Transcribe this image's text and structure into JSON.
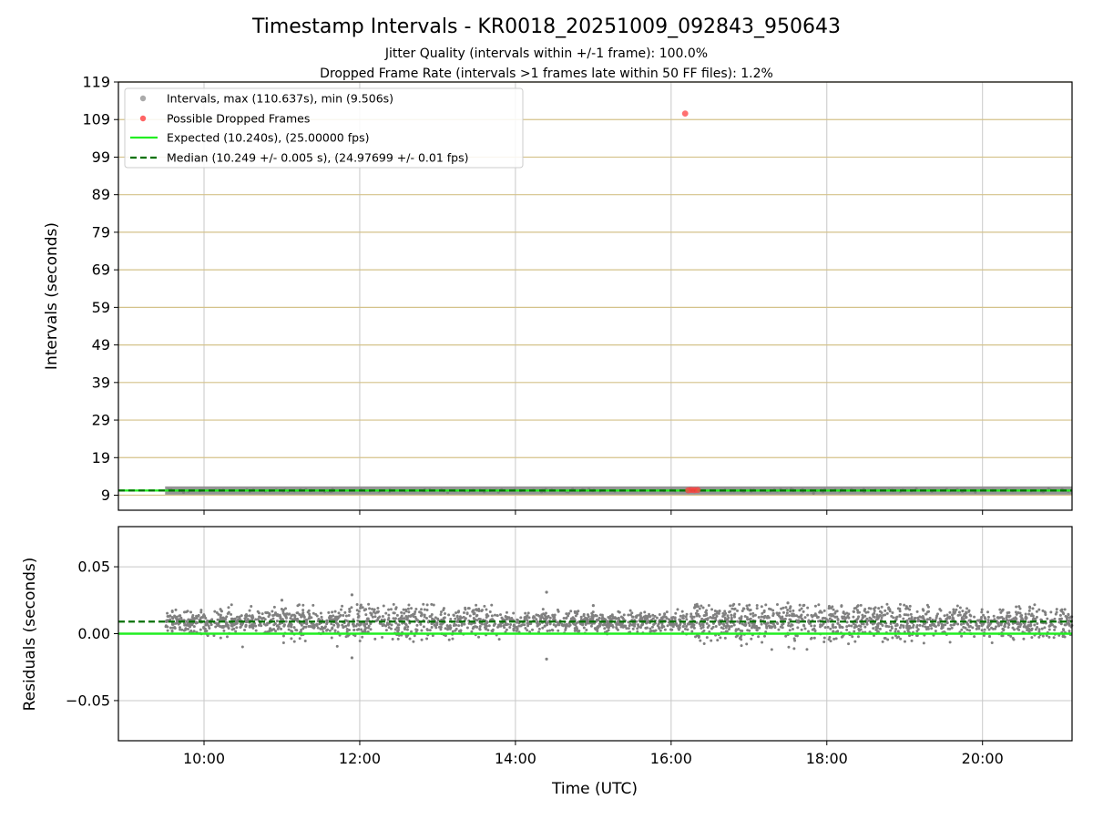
{
  "chart_data": {
    "type": "scatter",
    "title": "Timestamp Intervals - KR0018_20251009_092843_950643",
    "subtitle_lines": [
      "Jitter Quality (intervals within +/-1 frame): 100.0%",
      "Dropped Frame Rate (intervals >1 frames late within 50 FF files): 1.2%"
    ],
    "xlabel": "Time (UTC)",
    "x_range_hours": [
      8.9,
      21.15
    ],
    "x_ticks": [
      {
        "value": 10,
        "label": "10:00"
      },
      {
        "value": 12,
        "label": "12:00"
      },
      {
        "value": 14,
        "label": "14:00"
      },
      {
        "value": 16,
        "label": "16:00"
      },
      {
        "value": 18,
        "label": "18:00"
      },
      {
        "value": 20,
        "label": "20:00"
      }
    ],
    "data_start_hour": 9.5,
    "data_end_hour": 21.15,
    "top_panel": {
      "ylabel": "Intervals (seconds)",
      "ylim": [
        5,
        119
      ],
      "yticks": [
        9,
        19,
        29,
        39,
        49,
        59,
        69,
        79,
        89,
        99,
        109,
        119
      ],
      "expected_interval": 10.24,
      "median_interval": 10.249,
      "max_interval": 110.637,
      "min_interval": 9.506,
      "dropped_frames": [
        {
          "t": 16.18,
          "v": 110.6
        },
        {
          "t": 16.22,
          "v": 10.3
        },
        {
          "t": 16.26,
          "v": 10.4
        },
        {
          "t": 16.3,
          "v": 10.35
        },
        {
          "t": 16.34,
          "v": 10.4
        }
      ],
      "legend": [
        {
          "kind": "point",
          "color": "#aaaaaa",
          "label": "Intervals, max (110.637s), min (9.506s)"
        },
        {
          "kind": "point",
          "color": "#ff6464",
          "label": "Possible Dropped Frames"
        },
        {
          "kind": "line",
          "color": "#22ee22",
          "label": "Expected (10.240s), (25.00000 fps)"
        },
        {
          "kind": "dash",
          "color": "#007000",
          "label": "Median (10.249 +/- 0.005 s), (24.97699 +/- 0.01 fps)"
        }
      ]
    },
    "bottom_panel": {
      "ylabel": "Residuals (seconds)",
      "ylim": [
        -0.08,
        0.08
      ],
      "yticks": [
        {
          "value": 0.05,
          "label": "0.05"
        },
        {
          "value": 0.0,
          "label": "0.00"
        },
        {
          "value": -0.05,
          "label": "−0.05"
        }
      ],
      "expected_residual": 0.0,
      "median_residual": 0.009,
      "noise_segments": [
        {
          "from": 9.5,
          "to": 11.0,
          "sd": 0.0045
        },
        {
          "from": 11.0,
          "to": 13.8,
          "sd": 0.0062
        },
        {
          "from": 13.8,
          "to": 16.3,
          "sd": 0.0038
        },
        {
          "from": 16.3,
          "to": 19.5,
          "sd": 0.0072
        },
        {
          "from": 19.5,
          "to": 21.15,
          "sd": 0.0058
        }
      ],
      "outliers": [
        {
          "t": 11.0,
          "v": 0.025
        },
        {
          "t": 11.9,
          "v": 0.029
        },
        {
          "t": 11.9,
          "v": -0.018
        },
        {
          "t": 14.4,
          "v": 0.031
        },
        {
          "t": 14.4,
          "v": -0.019
        },
        {
          "t": 15.0,
          "v": 0.021
        },
        {
          "t": 17.5,
          "v": 0.023
        },
        {
          "t": 17.7,
          "v": 0.021
        }
      ]
    },
    "colors": {
      "hgrid_top": "#d4c28a",
      "grid": "#c8c8c8",
      "points": "#808080",
      "interval_band": "#8a8a8a",
      "dropped": "#ff4040",
      "expected": "#22ee22",
      "median": "#007000"
    }
  }
}
